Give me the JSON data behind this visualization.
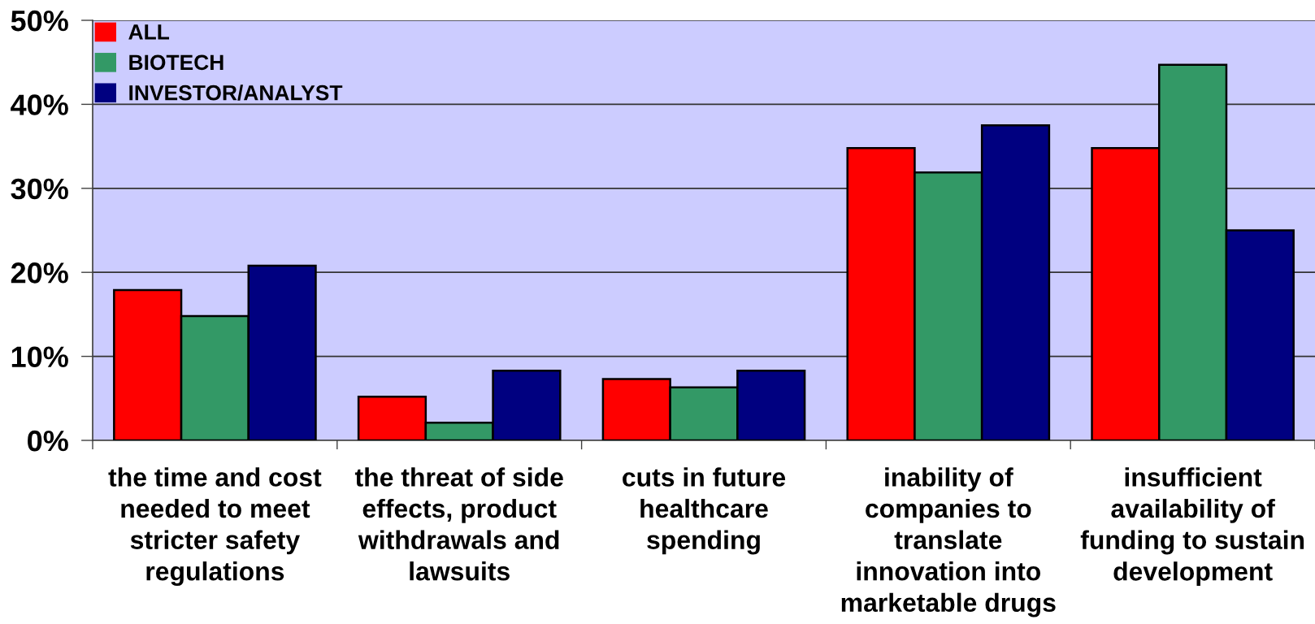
{
  "chart_data": {
    "type": "bar",
    "categories": [
      "the time and cost\nneeded to meet\nstricter safety\nregulations",
      "the threat of side\neffects, product\nwithdrawals and\nlawsuits",
      "cuts in future\nhealthcare\nspending",
      "inability of\ncompanies to\ntranslate\ninnovation into\nmarketable drugs",
      "insufficient\navailability of\nfunding to sustain\ndevelopment"
    ],
    "series": [
      {
        "name": "ALL",
        "color": "#ff0000",
        "values": [
          17.9,
          5.2,
          7.3,
          34.8,
          34.8
        ]
      },
      {
        "name": "BIOTECH",
        "color": "#339966",
        "values": [
          14.8,
          2.1,
          6.3,
          31.9,
          44.7
        ]
      },
      {
        "name": "INVESTOR/ANALYST",
        "color": "#000080",
        "values": [
          20.8,
          8.3,
          8.3,
          37.5,
          25.0
        ]
      }
    ],
    "ylim": [
      0,
      50
    ],
    "yticks": [
      {
        "value": 0,
        "label": "0%"
      },
      {
        "value": 10,
        "label": "10%"
      },
      {
        "value": 20,
        "label": "20%"
      },
      {
        "value": 30,
        "label": "30%"
      },
      {
        "value": 40,
        "label": "40%"
      },
      {
        "value": 50,
        "label": "50%"
      }
    ],
    "grid": "y",
    "legend": "top left"
  }
}
